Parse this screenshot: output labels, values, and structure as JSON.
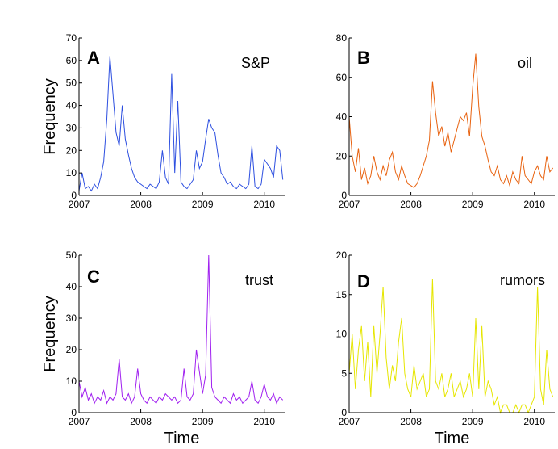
{
  "chart_data": [
    {
      "type": "line",
      "panel_label": "A",
      "series": [
        {
          "name": "S&P",
          "color": "#2d4fe0",
          "x": [
            2007.0,
            2007.05,
            2007.1,
            2007.15,
            2007.2,
            2007.25,
            2007.3,
            2007.35,
            2007.4,
            2007.45,
            2007.5,
            2007.55,
            2007.6,
            2007.65,
            2007.7,
            2007.75,
            2007.8,
            2007.85,
            2007.9,
            2007.95,
            2008.0,
            2008.05,
            2008.1,
            2008.15,
            2008.2,
            2008.25,
            2008.3,
            2008.35,
            2008.4,
            2008.45,
            2008.5,
            2008.55,
            2008.6,
            2008.65,
            2008.7,
            2008.75,
            2008.8,
            2008.85,
            2008.9,
            2008.95,
            2009.0,
            2009.05,
            2009.1,
            2009.15,
            2009.2,
            2009.25,
            2009.3,
            2009.35,
            2009.4,
            2009.45,
            2009.5,
            2009.55,
            2009.6,
            2009.65,
            2009.7,
            2009.75,
            2009.8,
            2009.85,
            2009.9,
            2009.95,
            2010.0,
            2010.05,
            2010.1,
            2010.15,
            2010.2,
            2010.25,
            2010.3
          ],
          "y": [
            2,
            10,
            3,
            4,
            2,
            5,
            3,
            8,
            15,
            34,
            62,
            45,
            28,
            22,
            40,
            25,
            18,
            12,
            8,
            6,
            5,
            4,
            3,
            5,
            4,
            3,
            6,
            20,
            8,
            5,
            54,
            10,
            42,
            6,
            4,
            3,
            5,
            7,
            20,
            12,
            15,
            25,
            34,
            30,
            28,
            18,
            10,
            8,
            5,
            6,
            4,
            3,
            5,
            4,
            3,
            5,
            22,
            4,
            3,
            5,
            16,
            14,
            12,
            8,
            22,
            20,
            7
          ]
        }
      ],
      "xlim": [
        2007,
        2010.33
      ],
      "ylim": [
        0,
        70
      ],
      "xticks": [
        "2007",
        "2008",
        "2009",
        "2010"
      ],
      "yticks": [
        "0",
        "10",
        "20",
        "30",
        "40",
        "50",
        "60",
        "70"
      ],
      "ylabel": "Frequency",
      "xlabel": ""
    },
    {
      "type": "line",
      "panel_label": "B",
      "series": [
        {
          "name": "oil",
          "color": "#e8620f",
          "x": [
            2007.0,
            2007.05,
            2007.1,
            2007.15,
            2007.2,
            2007.25,
            2007.3,
            2007.35,
            2007.4,
            2007.45,
            2007.5,
            2007.55,
            2007.6,
            2007.65,
            2007.7,
            2007.75,
            2007.8,
            2007.85,
            2007.9,
            2007.95,
            2008.0,
            2008.05,
            2008.1,
            2008.15,
            2008.2,
            2008.25,
            2008.3,
            2008.35,
            2008.4,
            2008.45,
            2008.5,
            2008.55,
            2008.6,
            2008.65,
            2008.7,
            2008.75,
            2008.8,
            2008.85,
            2008.9,
            2008.95,
            2009.0,
            2009.05,
            2009.1,
            2009.15,
            2009.2,
            2009.25,
            2009.3,
            2009.35,
            2009.4,
            2009.45,
            2009.5,
            2009.55,
            2009.6,
            2009.65,
            2009.7,
            2009.75,
            2009.8,
            2009.85,
            2009.9,
            2009.95,
            2010.0,
            2010.05,
            2010.1,
            2010.15,
            2010.2,
            2010.25,
            2010.3
          ],
          "y": [
            40,
            20,
            12,
            24,
            8,
            14,
            6,
            10,
            20,
            12,
            8,
            15,
            10,
            18,
            22,
            12,
            8,
            15,
            10,
            6,
            5,
            4,
            6,
            10,
            15,
            20,
            28,
            58,
            42,
            30,
            35,
            25,
            32,
            22,
            28,
            34,
            40,
            38,
            42,
            30,
            55,
            72,
            45,
            30,
            25,
            18,
            12,
            10,
            15,
            8,
            6,
            10,
            5,
            12,
            8,
            6,
            20,
            10,
            8,
            6,
            12,
            15,
            10,
            8,
            20,
            12,
            14
          ]
        }
      ],
      "xlim": [
        2007,
        2010.33
      ],
      "ylim": [
        0,
        80
      ],
      "xticks": [
        "2007",
        "2008",
        "2009",
        "2010"
      ],
      "yticks": [
        "0",
        "20",
        "40",
        "60",
        "80"
      ],
      "ylabel": "",
      "xlabel": ""
    },
    {
      "type": "line",
      "panel_label": "C",
      "series": [
        {
          "name": "trust",
          "color": "#a020f0",
          "x": [
            2007.0,
            2007.05,
            2007.1,
            2007.15,
            2007.2,
            2007.25,
            2007.3,
            2007.35,
            2007.4,
            2007.45,
            2007.5,
            2007.55,
            2007.6,
            2007.65,
            2007.7,
            2007.75,
            2007.8,
            2007.85,
            2007.9,
            2007.95,
            2008.0,
            2008.05,
            2008.1,
            2008.15,
            2008.2,
            2008.25,
            2008.3,
            2008.35,
            2008.4,
            2008.45,
            2008.5,
            2008.55,
            2008.6,
            2008.65,
            2008.7,
            2008.75,
            2008.8,
            2008.85,
            2008.9,
            2008.95,
            2009.0,
            2009.05,
            2009.1,
            2009.15,
            2009.2,
            2009.25,
            2009.3,
            2009.35,
            2009.4,
            2009.45,
            2009.5,
            2009.55,
            2009.6,
            2009.65,
            2009.7,
            2009.75,
            2009.8,
            2009.85,
            2009.9,
            2009.95,
            2010.0,
            2010.05,
            2010.1,
            2010.15,
            2010.2,
            2010.25,
            2010.3
          ],
          "y": [
            10,
            5,
            8,
            4,
            6,
            3,
            5,
            4,
            7,
            3,
            5,
            4,
            6,
            17,
            5,
            4,
            6,
            3,
            5,
            14,
            6,
            4,
            3,
            5,
            4,
            3,
            5,
            4,
            6,
            5,
            4,
            5,
            3,
            4,
            14,
            5,
            4,
            6,
            20,
            13,
            6,
            12,
            50,
            8,
            5,
            4,
            3,
            5,
            4,
            3,
            6,
            4,
            5,
            3,
            4,
            5,
            10,
            4,
            3,
            5,
            9,
            5,
            4,
            6,
            3,
            5,
            4
          ]
        }
      ],
      "xlim": [
        2007,
        2010.33
      ],
      "ylim": [
        0,
        50
      ],
      "xticks": [
        "2007",
        "2008",
        "2009",
        "2010"
      ],
      "yticks": [
        "0",
        "10",
        "20",
        "30",
        "40",
        "50"
      ],
      "ylabel": "Frequency",
      "xlabel": "Time"
    },
    {
      "type": "line",
      "panel_label": "D",
      "series": [
        {
          "name": "rumors",
          "color": "#e6e600",
          "x": [
            2007.0,
            2007.05,
            2007.1,
            2007.15,
            2007.2,
            2007.25,
            2007.3,
            2007.35,
            2007.4,
            2007.45,
            2007.5,
            2007.55,
            2007.6,
            2007.65,
            2007.7,
            2007.75,
            2007.8,
            2007.85,
            2007.9,
            2007.95,
            2008.0,
            2008.05,
            2008.1,
            2008.15,
            2008.2,
            2008.25,
            2008.3,
            2008.35,
            2008.4,
            2008.45,
            2008.5,
            2008.55,
            2008.6,
            2008.65,
            2008.7,
            2008.75,
            2008.8,
            2008.85,
            2008.9,
            2008.95,
            2009.0,
            2009.05,
            2009.1,
            2009.15,
            2009.2,
            2009.25,
            2009.3,
            2009.35,
            2009.4,
            2009.45,
            2009.5,
            2009.55,
            2009.6,
            2009.65,
            2009.7,
            2009.75,
            2009.8,
            2009.85,
            2009.9,
            2009.95,
            2010.0,
            2010.05,
            2010.1,
            2010.15,
            2010.2,
            2010.25,
            2010.3
          ],
          "y": [
            5,
            10,
            3,
            8,
            11,
            4,
            9,
            2,
            11,
            5,
            10,
            16,
            7,
            3,
            6,
            4,
            9,
            12,
            5,
            3,
            2,
            6,
            3,
            4,
            5,
            2,
            3,
            17,
            4,
            3,
            5,
            2,
            3,
            5,
            2,
            3,
            4,
            2,
            3,
            5,
            2,
            12,
            3,
            11,
            2,
            4,
            3,
            1,
            2,
            0,
            1,
            1,
            0,
            0,
            1,
            0,
            1,
            1,
            0,
            1,
            2,
            16,
            3,
            1,
            8,
            3,
            2
          ]
        }
      ],
      "xlim": [
        2007,
        2010.33
      ],
      "ylim": [
        0,
        20
      ],
      "xticks": [
        "2007",
        "2008",
        "2009",
        "2010"
      ],
      "yticks": [
        "0",
        "5",
        "10",
        "15",
        "20"
      ],
      "ylabel": "",
      "xlabel": "Time"
    }
  ]
}
